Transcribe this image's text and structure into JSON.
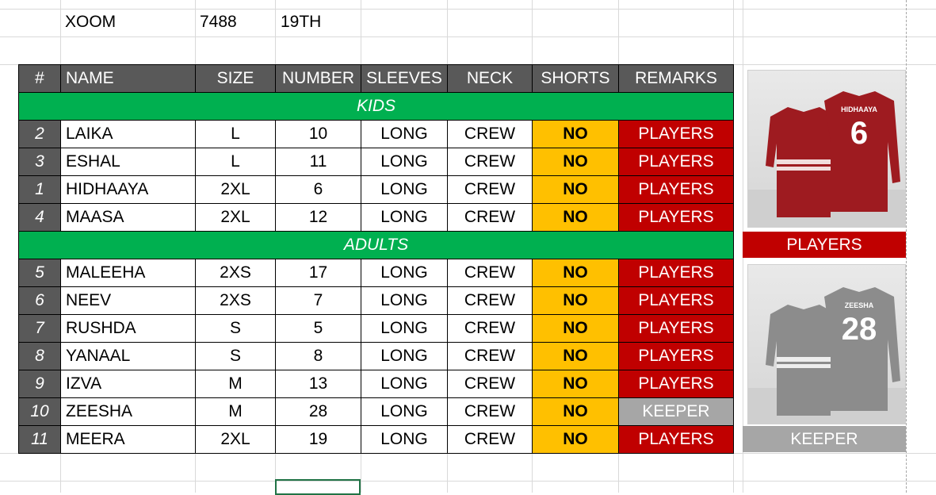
{
  "info": {
    "col1": "XOOM",
    "col2": "7488",
    "col3": "19TH"
  },
  "headers": [
    "#",
    "NAME",
    "SIZE",
    "NUMBER",
    "SLEEVES",
    "NECK",
    "SHORTS",
    "REMARKS"
  ],
  "sections": {
    "kids": "KIDS",
    "adults": "ADULTS"
  },
  "kids_rows": [
    {
      "num": "2",
      "name": "LAIKA",
      "size": "L",
      "number": "10",
      "sleeves": "LONG",
      "neck": "CREW",
      "shorts": "NO",
      "remarks": "PLAYERS"
    },
    {
      "num": "3",
      "name": "ESHAL",
      "size": "L",
      "number": "11",
      "sleeves": "LONG",
      "neck": "CREW",
      "shorts": "NO",
      "remarks": "PLAYERS"
    },
    {
      "num": "1",
      "name": "HIDHAAYA",
      "size": "2XL",
      "number": "6",
      "sleeves": "LONG",
      "neck": "CREW",
      "shorts": "NO",
      "remarks": "PLAYERS"
    },
    {
      "num": "4",
      "name": "MAASA",
      "size": "2XL",
      "number": "12",
      "sleeves": "LONG",
      "neck": "CREW",
      "shorts": "NO",
      "remarks": "PLAYERS"
    }
  ],
  "adult_rows": [
    {
      "num": "5",
      "name": "MALEEHA",
      "size": "2XS",
      "number": "17",
      "sleeves": "LONG",
      "neck": "CREW",
      "shorts": "NO",
      "remarks": "PLAYERS"
    },
    {
      "num": "6",
      "name": "NEEV",
      "size": "2XS",
      "number": "7",
      "sleeves": "LONG",
      "neck": "CREW",
      "shorts": "NO",
      "remarks": "PLAYERS"
    },
    {
      "num": "7",
      "name": "RUSHDA",
      "size": "S",
      "number": "5",
      "sleeves": "LONG",
      "neck": "CREW",
      "shorts": "NO",
      "remarks": "PLAYERS"
    },
    {
      "num": "8",
      "name": "YANAAL",
      "size": "S",
      "number": "8",
      "sleeves": "LONG",
      "neck": "CREW",
      "shorts": "NO",
      "remarks": "PLAYERS"
    },
    {
      "num": "9",
      "name": "IZVA",
      "size": "M",
      "number": "13",
      "sleeves": "LONG",
      "neck": "CREW",
      "shorts": "NO",
      "remarks": "PLAYERS"
    },
    {
      "num": "10",
      "name": "ZEESHA",
      "size": "M",
      "number": "28",
      "sleeves": "LONG",
      "neck": "CREW",
      "shorts": "NO",
      "remarks": "KEEPER"
    },
    {
      "num": "11",
      "name": "MEERA",
      "size": "2XL",
      "number": "19",
      "sleeves": "LONG",
      "neck": "CREW",
      "shorts": "NO",
      "remarks": "PLAYERS"
    }
  ],
  "jerseys": {
    "players": {
      "label": "PLAYERS",
      "back_name": "HIDHAAYA",
      "back_number": "6",
      "color": "#a11a1f"
    },
    "keeper": {
      "label": "KEEPER",
      "back_name": "ZEESHA",
      "back_number": "28",
      "color": "#8a8a8a"
    }
  },
  "colors": {
    "header": "#595959",
    "section": "#00b050",
    "shorts": "#ffc000",
    "players": "#c00000",
    "keeper": "#a6a6a6"
  }
}
